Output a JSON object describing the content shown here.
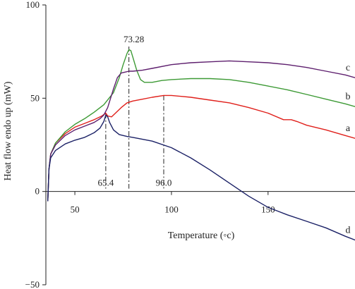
{
  "chart_data": {
    "type": "line",
    "title": "",
    "xlabel": "Temperature (◦c)",
    "ylabel": "Heat flow endo up (mW)",
    "xlim": [
      35,
      195
    ],
    "ylim": [
      -50,
      100
    ],
    "x_ticks": [
      50,
      100,
      150
    ],
    "y_ticks": [
      -50,
      0,
      50,
      100
    ],
    "grid": false,
    "legend": "inline labels at right end of each curve",
    "colors": {
      "a": "#e0201b",
      "b": "#3d9a35",
      "c": "#5e1f6e",
      "d": "#1b2166",
      "axis": "#222222",
      "annotation": "#222222"
    },
    "series": [
      {
        "name": "a",
        "points": [
          [
            36.0,
            -5
          ],
          [
            36.6,
            12
          ],
          [
            37.5,
            20
          ],
          [
            40,
            26
          ],
          [
            45,
            31
          ],
          [
            50,
            34.5
          ],
          [
            55,
            36.5
          ],
          [
            60,
            38.5
          ],
          [
            64,
            40.5
          ],
          [
            66,
            42
          ],
          [
            67,
            40.5
          ],
          [
            69,
            40
          ],
          [
            71,
            42
          ],
          [
            74,
            45
          ],
          [
            77,
            47.5
          ],
          [
            80,
            48.5
          ],
          [
            85,
            49.5
          ],
          [
            90,
            50.5
          ],
          [
            96,
            51.5
          ],
          [
            100,
            51.5
          ],
          [
            110,
            50.5
          ],
          [
            120,
            49
          ],
          [
            130,
            47.5
          ],
          [
            140,
            45
          ],
          [
            150,
            42
          ],
          [
            158,
            38.5
          ],
          [
            162,
            38.5
          ],
          [
            165,
            37.5
          ],
          [
            170,
            35.5
          ],
          [
            180,
            33
          ],
          [
            190,
            30
          ],
          [
            195,
            28.5
          ]
        ]
      },
      {
        "name": "b",
        "points": [
          [
            36.0,
            -5
          ],
          [
            36.6,
            12
          ],
          [
            37.5,
            20
          ],
          [
            40,
            26
          ],
          [
            45,
            32
          ],
          [
            50,
            36
          ],
          [
            55,
            39
          ],
          [
            60,
            42.5
          ],
          [
            65,
            46.5
          ],
          [
            70,
            53
          ],
          [
            73,
            61
          ],
          [
            75,
            68
          ],
          [
            77,
            74
          ],
          [
            78,
            76
          ],
          [
            79,
            75.5
          ],
          [
            80,
            72
          ],
          [
            82,
            65
          ],
          [
            84,
            60
          ],
          [
            86,
            58.5
          ],
          [
            90,
            58.5
          ],
          [
            95,
            59.5
          ],
          [
            100,
            60
          ],
          [
            110,
            60.5
          ],
          [
            120,
            60.5
          ],
          [
            130,
            60
          ],
          [
            140,
            58.5
          ],
          [
            150,
            56.5
          ],
          [
            160,
            54.5
          ],
          [
            170,
            52
          ],
          [
            180,
            49.5
          ],
          [
            190,
            47
          ],
          [
            195,
            45.5
          ]
        ]
      },
      {
        "name": "c",
        "points": [
          [
            36.0,
            -5
          ],
          [
            36.6,
            12
          ],
          [
            37.5,
            20
          ],
          [
            40,
            25
          ],
          [
            45,
            30
          ],
          [
            50,
            33
          ],
          [
            55,
            35
          ],
          [
            60,
            37
          ],
          [
            63,
            39
          ],
          [
            65,
            41
          ],
          [
            67,
            45
          ],
          [
            70,
            55
          ],
          [
            72,
            61
          ],
          [
            74,
            63.5
          ],
          [
            76,
            64
          ],
          [
            78,
            64.5
          ],
          [
            80,
            64.5
          ],
          [
            85,
            65
          ],
          [
            90,
            66
          ],
          [
            100,
            68
          ],
          [
            110,
            69
          ],
          [
            120,
            69.5
          ],
          [
            130,
            70
          ],
          [
            140,
            69.5
          ],
          [
            150,
            69
          ],
          [
            160,
            68
          ],
          [
            170,
            66.5
          ],
          [
            180,
            64.5
          ],
          [
            190,
            62.5
          ],
          [
            195,
            61
          ]
        ]
      },
      {
        "name": "d",
        "points": [
          [
            36.0,
            -5
          ],
          [
            36.6,
            12
          ],
          [
            37.5,
            18
          ],
          [
            40,
            22
          ],
          [
            45,
            25.5
          ],
          [
            50,
            27.5
          ],
          [
            55,
            29
          ],
          [
            60,
            31.5
          ],
          [
            63,
            34
          ],
          [
            65,
            37.5
          ],
          [
            66,
            41
          ],
          [
            67,
            40
          ],
          [
            68,
            37
          ],
          [
            70,
            33
          ],
          [
            73,
            30.5
          ],
          [
            77,
            29.5
          ],
          [
            80,
            29
          ],
          [
            90,
            27
          ],
          [
            100,
            23.5
          ],
          [
            110,
            18
          ],
          [
            120,
            11.5
          ],
          [
            130,
            4.5
          ],
          [
            140,
            -2.5
          ],
          [
            150,
            -8.5
          ],
          [
            155,
            -10.5
          ],
          [
            160,
            -12.5
          ],
          [
            170,
            -16
          ],
          [
            180,
            -19.5
          ],
          [
            190,
            -24
          ],
          [
            195,
            -26
          ]
        ]
      }
    ],
    "annotations": [
      {
        "label": "65.4",
        "x": 65.4
      },
      {
        "label": "73.28",
        "x": 73.28
      },
      {
        "label": "96.0",
        "x": 96.0
      }
    ]
  }
}
